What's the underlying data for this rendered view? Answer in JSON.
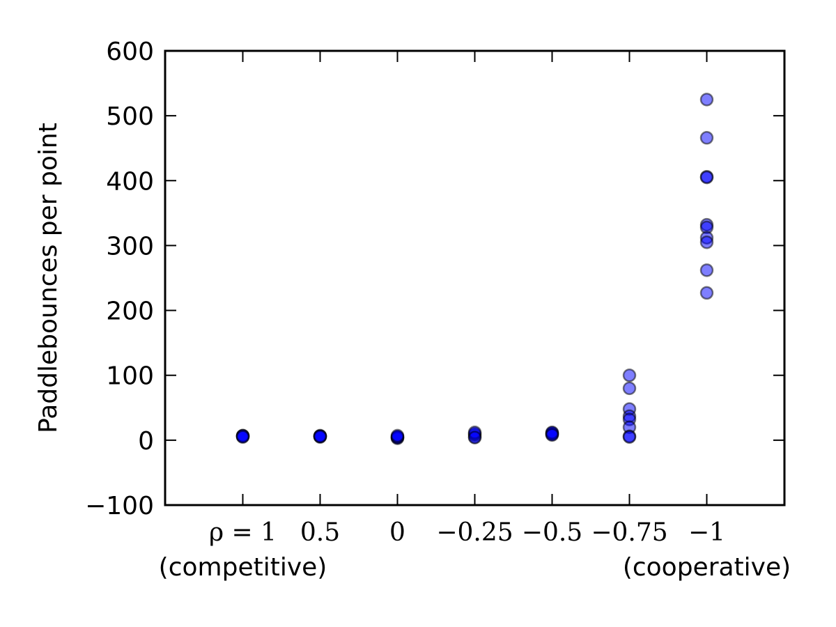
{
  "chart_data": {
    "type": "scatter",
    "ylabel": "Paddlebounces per point",
    "xlabel": "",
    "ylim": [
      -100,
      600
    ],
    "yticks": [
      "−100",
      "0",
      "100",
      "200",
      "300",
      "400",
      "500",
      "600"
    ],
    "ytick_values": [
      -100,
      0,
      100,
      200,
      300,
      400,
      500,
      600
    ],
    "categories": [
      "ρ = 1",
      "0.5",
      "0",
      "−0.25",
      "−0.5",
      "−0.75",
      "−1"
    ],
    "category_sublabels": [
      "(competitive)",
      "",
      "",
      "",
      "",
      "",
      "(cooperative)"
    ],
    "grid": false,
    "marker_color": "#0000ff",
    "marker_edge_color": "#000000",
    "marker_alpha": 0.5,
    "series": [
      {
        "points": [
          {
            "x": "ρ = 1",
            "y": 6
          },
          {
            "x": "ρ = 1",
            "y": 6
          },
          {
            "x": "ρ = 1",
            "y": 7
          },
          {
            "x": "ρ = 1",
            "y": 7
          },
          {
            "x": "ρ = 1",
            "y": 5
          },
          {
            "x": "0.5",
            "y": 6
          },
          {
            "x": "0.5",
            "y": 6
          },
          {
            "x": "0.5",
            "y": 7
          },
          {
            "x": "0.5",
            "y": 5
          },
          {
            "x": "0.5",
            "y": 6
          },
          {
            "x": "0",
            "y": 4
          },
          {
            "x": "0",
            "y": 5
          },
          {
            "x": "0",
            "y": 3
          },
          {
            "x": "0",
            "y": 5
          },
          {
            "x": "0",
            "y": 7
          },
          {
            "x": "−0.25",
            "y": 5
          },
          {
            "x": "−0.25",
            "y": 8
          },
          {
            "x": "−0.25",
            "y": 10
          },
          {
            "x": "−0.25",
            "y": 12
          },
          {
            "x": "−0.25",
            "y": 4
          },
          {
            "x": "−0.5",
            "y": 9
          },
          {
            "x": "−0.5",
            "y": 10
          },
          {
            "x": "−0.5",
            "y": 11
          },
          {
            "x": "−0.5",
            "y": 12
          },
          {
            "x": "−0.5",
            "y": 8
          },
          {
            "x": "−0.75",
            "y": 100
          },
          {
            "x": "−0.75",
            "y": 80
          },
          {
            "x": "−0.75",
            "y": 48
          },
          {
            "x": "−0.75",
            "y": 37
          },
          {
            "x": "−0.75",
            "y": 32
          },
          {
            "x": "−0.75",
            "y": 20
          },
          {
            "x": "−0.75",
            "y": 6
          },
          {
            "x": "−0.75",
            "y": 5
          },
          {
            "x": "−1",
            "y": 525
          },
          {
            "x": "−1",
            "y": 466
          },
          {
            "x": "−1",
            "y": 406
          },
          {
            "x": "−1",
            "y": 405
          },
          {
            "x": "−1",
            "y": 332
          },
          {
            "x": "−1",
            "y": 328
          },
          {
            "x": "−1",
            "y": 312
          },
          {
            "x": "−1",
            "y": 305
          },
          {
            "x": "−1",
            "y": 262
          },
          {
            "x": "−1",
            "y": 227
          }
        ]
      }
    ]
  }
}
